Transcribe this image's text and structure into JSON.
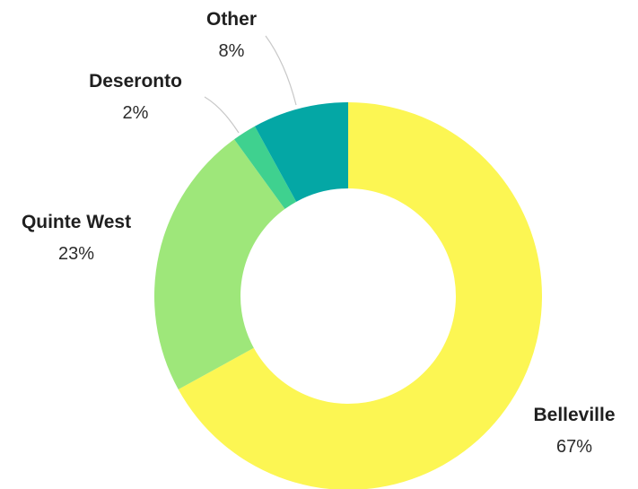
{
  "chart_data": {
    "type": "pie",
    "variant": "donut",
    "title": "",
    "slices": [
      {
        "label": "Belleville",
        "value": 67,
        "display": "67%",
        "color": "#fcf653"
      },
      {
        "label": "Quinte West",
        "value": 23,
        "display": "23%",
        "color": "#9ee77a"
      },
      {
        "label": "Deseronto",
        "value": 2,
        "display": "2%",
        "color": "#3fd18f"
      },
      {
        "label": "Other",
        "value": 8,
        "display": "8%",
        "color": "#04a7a5"
      }
    ]
  }
}
